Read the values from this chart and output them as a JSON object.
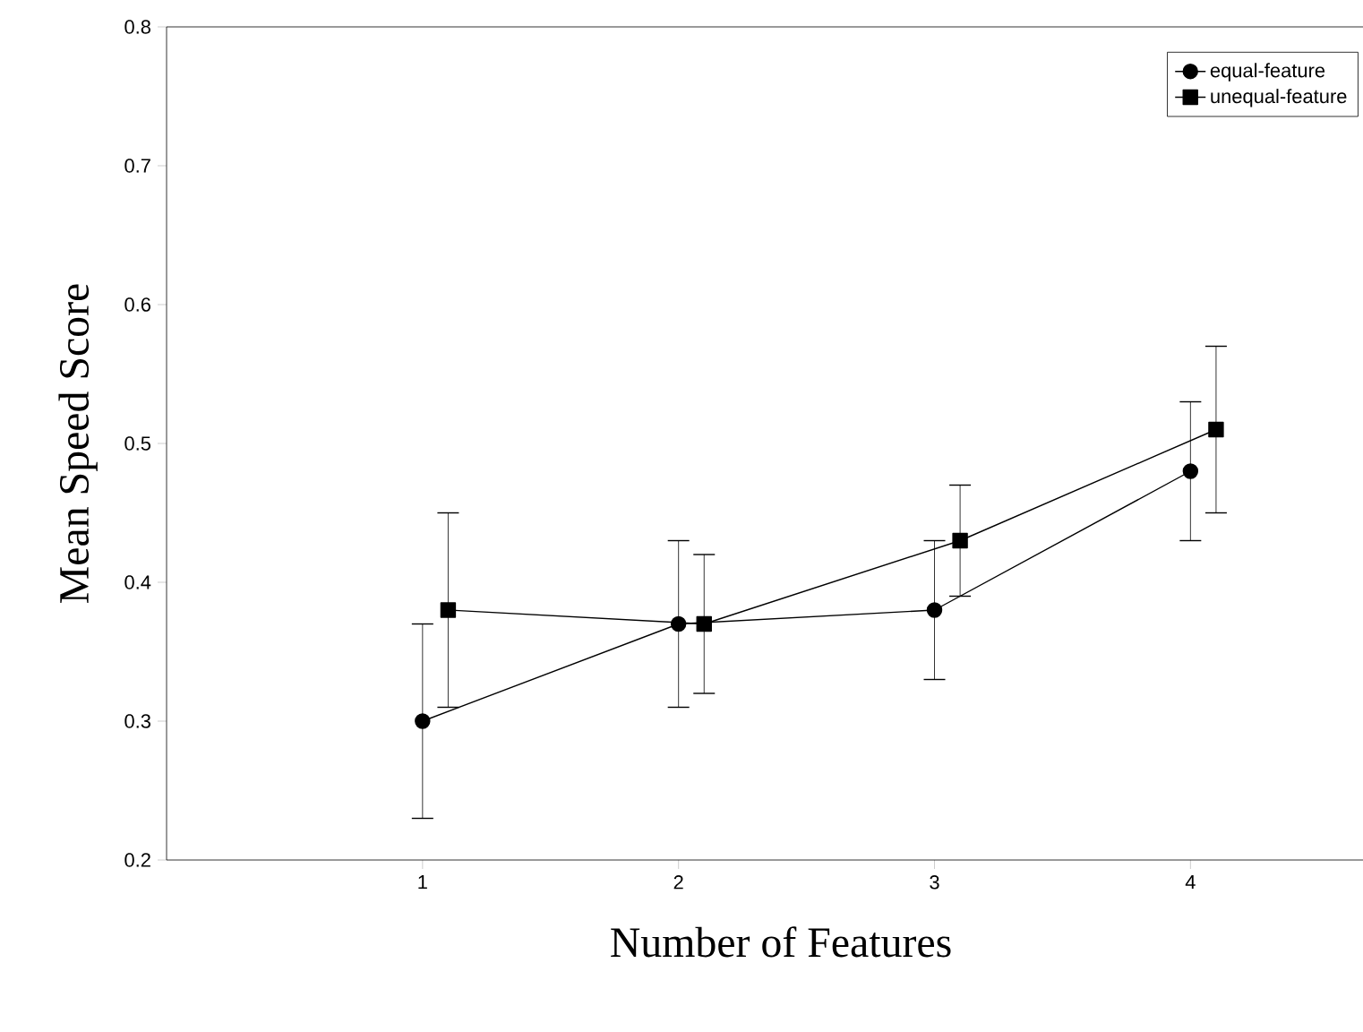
{
  "chart_data": {
    "type": "line",
    "xlabel": "Number of Features",
    "ylabel": "Mean Speed Score",
    "xlim": [
      0,
      4.8
    ],
    "xticks": [
      1,
      2,
      3,
      4
    ],
    "ylim": [
      0.2,
      0.8
    ],
    "yticks": [
      0.2,
      0.3,
      0.4,
      0.5,
      0.6,
      0.7,
      0.8
    ],
    "legend": "top right",
    "grid": false,
    "line_style": "solid",
    "series": [
      {
        "name": "equal-feature",
        "color": "#000000",
        "marker": "circle",
        "x": [
          1,
          2,
          3,
          4
        ],
        "values": [
          0.3,
          0.37,
          0.38,
          0.48
        ],
        "errors": [
          0.07,
          0.06,
          0.05,
          0.05
        ]
      },
      {
        "name": "unequal-feature",
        "color": "#000000",
        "marker": "square",
        "x": [
          1.1,
          2.1,
          3.1,
          4.1
        ],
        "values": [
          0.38,
          0.37,
          0.43,
          0.51
        ],
        "errors": [
          0.07,
          0.05,
          0.04,
          0.06
        ]
      }
    ]
  }
}
